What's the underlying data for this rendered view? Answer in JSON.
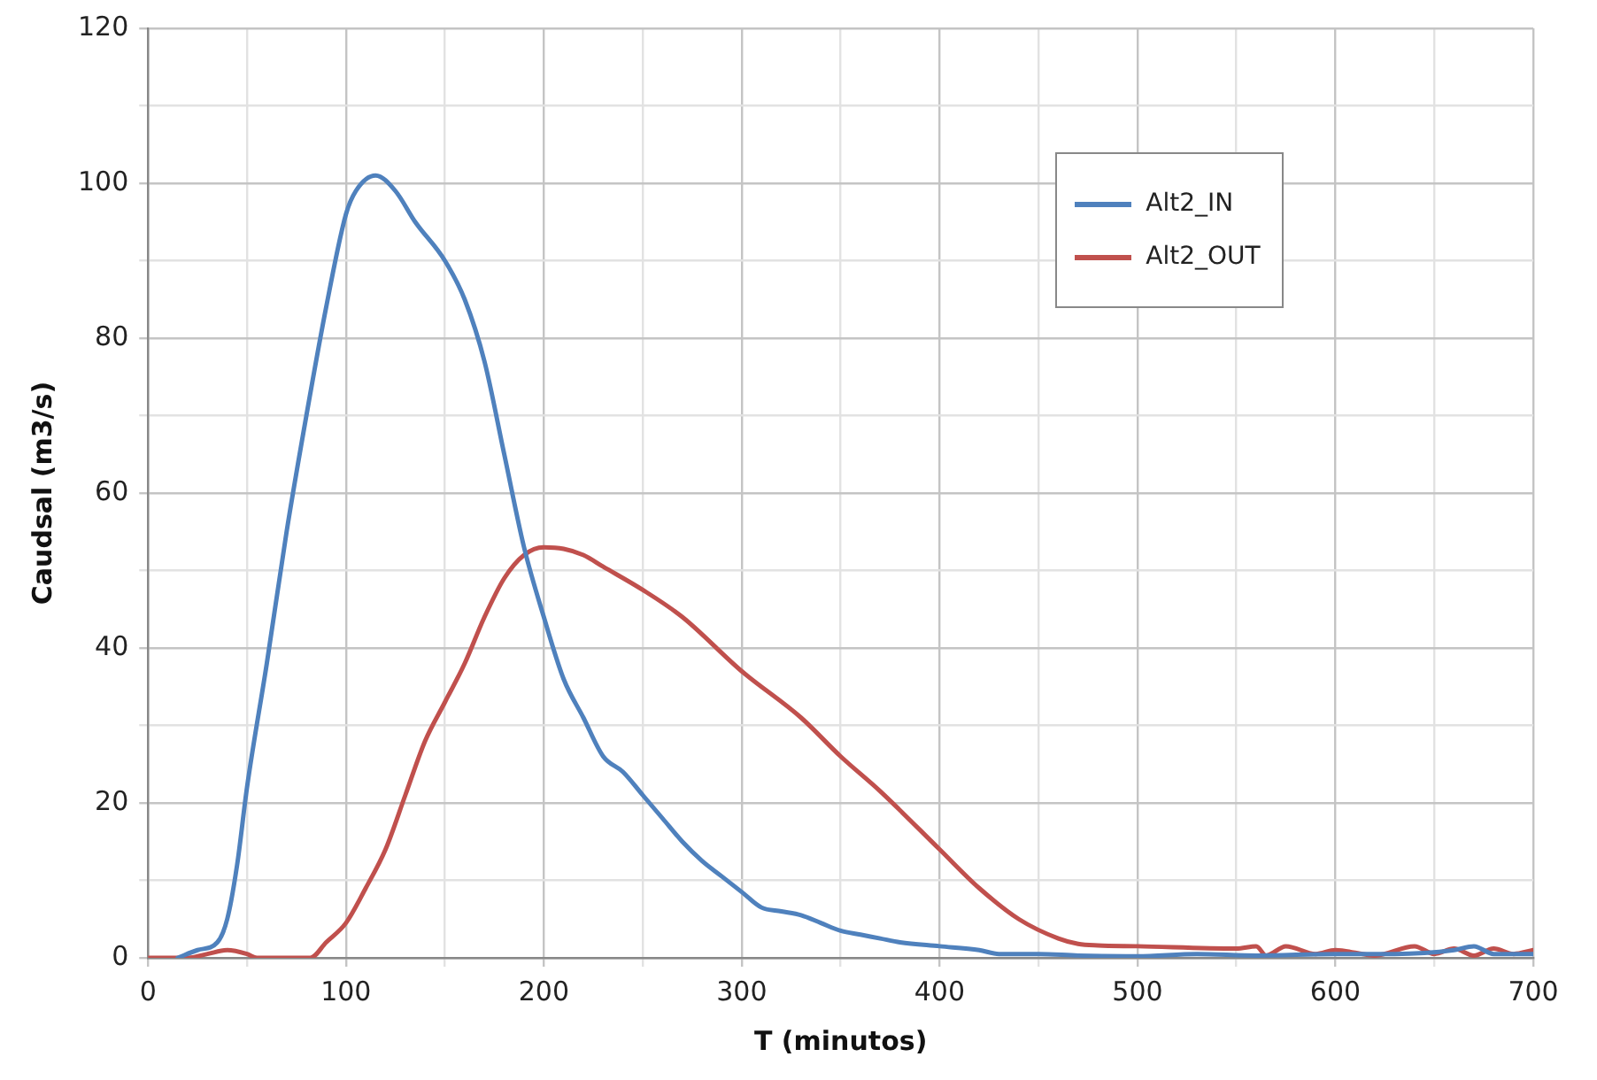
{
  "chart_data": {
    "type": "line",
    "xlabel": "T (minutos)",
    "ylabel": "Caudsal (m3/s)",
    "xlim": [
      0,
      700
    ],
    "ylim": [
      0,
      120
    ],
    "xticks": [
      0,
      {
        "value": 50,
        "label": null
      },
      100,
      {
        "value": 150,
        "label": null
      },
      200,
      {
        "value": 250,
        "label": null
      },
      300,
      {
        "value": 350,
        "label": null
      },
      400,
      {
        "value": 450,
        "label": null
      },
      500,
      {
        "value": 550,
        "label": null
      },
      600,
      {
        "value": 650,
        "label": null
      },
      700
    ],
    "yticks": [
      0,
      {
        "value": 10,
        "label": null
      },
      20,
      {
        "value": 30,
        "label": null
      },
      40,
      {
        "value": 50,
        "label": null
      },
      60,
      {
        "value": 70,
        "label": null
      },
      80,
      {
        "value": 90,
        "label": null
      },
      100,
      {
        "value": 110,
        "label": null
      },
      120
    ],
    "grid": true,
    "legend": "top right",
    "marker": "none",
    "line_style": "solid",
    "series": [
      {
        "name": "Alt2_IN",
        "color": "#4f81bd",
        "x": [
          15,
          25,
          35,
          40,
          45,
          50,
          60,
          70,
          80,
          90,
          100,
          105,
          115,
          125,
          135,
          150,
          160,
          170,
          180,
          190,
          200,
          210,
          220,
          230,
          240,
          250,
          260,
          270,
          280,
          290,
          300,
          310,
          320,
          330,
          340,
          350,
          360,
          370,
          380,
          400,
          420,
          430,
          450,
          470,
          500,
          530,
          560,
          600,
          630,
          660,
          670,
          680,
          690,
          700
        ],
        "values": [
          0,
          1,
          2,
          5,
          12,
          22,
          38,
          55,
          70,
          84,
          96,
          99,
          101,
          99,
          95,
          90,
          85,
          77,
          65,
          53,
          44,
          36,
          31,
          26,
          24,
          21,
          18,
          15,
          12.5,
          10.5,
          8.5,
          6.5,
          6,
          5.5,
          4.5,
          3.5,
          3,
          2.5,
          2,
          1.5,
          1,
          0.5,
          0.5,
          0.3,
          0.2,
          0.5,
          0.3,
          0.5,
          0.5,
          1,
          1.5,
          0.5,
          0.5,
          0.5
        ]
      },
      {
        "name": "Alt2_OUT",
        "color": "#c0504d",
        "x": [
          0,
          10,
          20,
          30,
          40,
          50,
          55,
          82,
          90,
          100,
          110,
          120,
          130,
          140,
          150,
          160,
          170,
          180,
          190,
          200,
          210,
          220,
          230,
          250,
          270,
          300,
          330,
          350,
          370,
          400,
          420,
          440,
          460,
          470,
          480,
          500,
          550,
          560,
          565,
          575,
          590,
          600,
          620,
          640,
          650,
          660,
          670,
          680,
          690,
          700
        ],
        "values": [
          0,
          0,
          0,
          0.5,
          1,
          0.5,
          0,
          0,
          2,
          4.5,
          9,
          14,
          21,
          28,
          33,
          38,
          44,
          49,
          52,
          53,
          52.8,
          52,
          50.5,
          47.5,
          44,
          37,
          31,
          26,
          21.5,
          14,
          9,
          5,
          2.5,
          1.8,
          1.6,
          1.5,
          1.2,
          1.5,
          0.3,
          1.5,
          0.5,
          1,
          0.3,
          1.5,
          0.5,
          1.2,
          0.3,
          1.2,
          0.5,
          1
        ]
      }
    ]
  }
}
